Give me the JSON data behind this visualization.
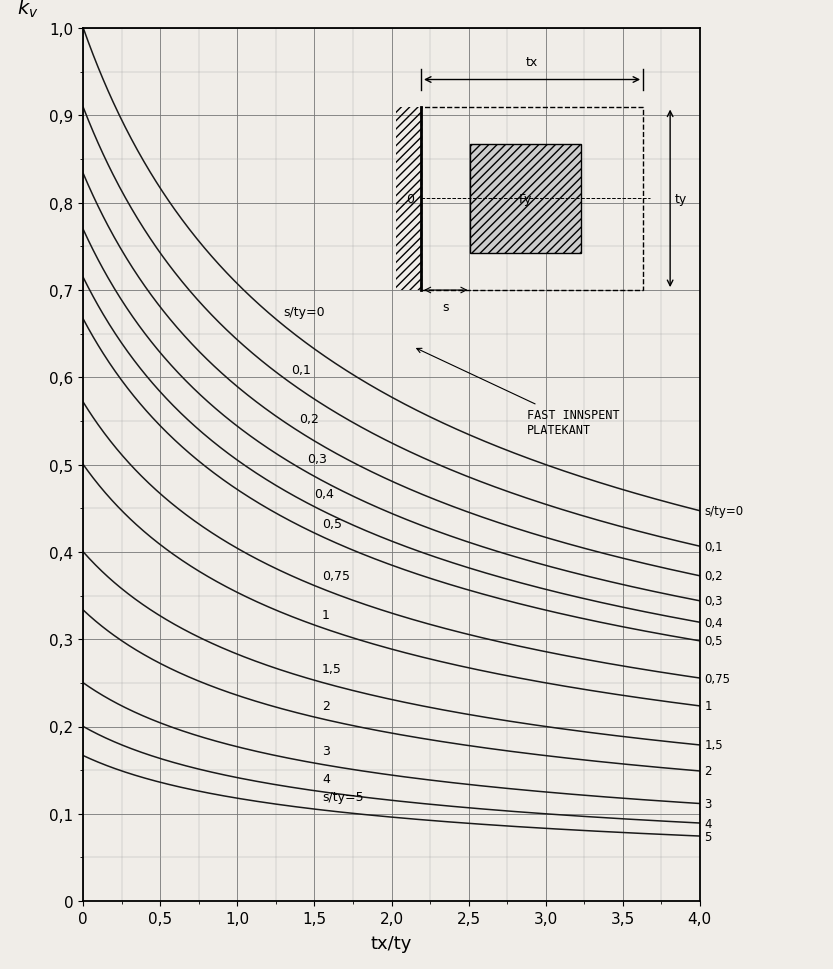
{
  "xlabel": "tx/ty",
  "ylabel": "k_v",
  "xlim": [
    0,
    4.0
  ],
  "ylim": [
    0,
    1.0
  ],
  "xticks": [
    0,
    0.5,
    1.0,
    1.5,
    2.0,
    2.5,
    3.0,
    3.5,
    4.0
  ],
  "yticks": [
    0,
    0.1,
    0.2,
    0.3,
    0.4,
    0.5,
    0.6,
    0.7,
    0.8,
    0.9,
    1.0
  ],
  "xtick_labels": [
    "0",
    "0,5",
    "1,0",
    "1,5",
    "2,0",
    "2,5",
    "3,0",
    "3,5",
    "4,0"
  ],
  "ytick_labels": [
    "0",
    "0,1",
    "0,2",
    "0,3",
    "0,4",
    "0,5",
    "0,6",
    "0,7",
    "0,8",
    "0,9",
    "1,0"
  ],
  "s_ty_values": [
    0,
    0.1,
    0.2,
    0.3,
    0.4,
    0.5,
    0.75,
    1.0,
    1.5,
    2.0,
    3.0,
    4.0,
    5.0
  ],
  "left_labels": [
    "s/ty=0",
    "0,1",
    "0,2",
    "0,3",
    "0,4",
    "0,5",
    "0,75",
    "1",
    "1,5",
    "2",
    "3",
    "4",
    "s/ty=5"
  ],
  "right_labels": [
    "s/ty=0",
    "0,1",
    "0,2",
    "0,3",
    "0,4",
    "0,5",
    "0,75",
    "1",
    "1,5",
    "2",
    "3",
    "4",
    "5"
  ],
  "line_color": "#1a1a1a",
  "bg_color": "#f0ede8",
  "inset_text": "FAST INNSPENT\nPLATEKANT"
}
